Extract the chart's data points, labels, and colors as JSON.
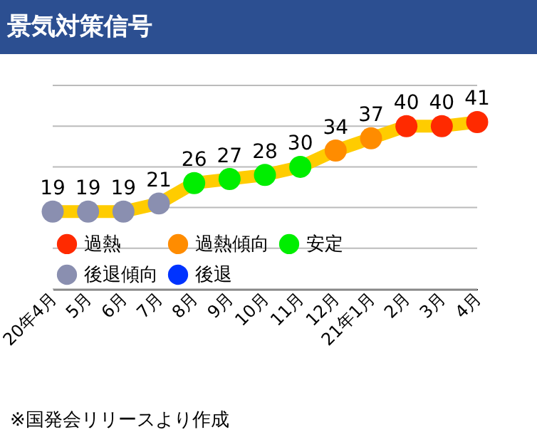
{
  "chart_data": {
    "type": "line",
    "title": "景気対策信号",
    "categories": [
      "20年4月",
      "5月",
      "6月",
      "7月",
      "8月",
      "9月",
      "10月",
      "11月",
      "12月",
      "21年1月",
      "2月",
      "3月",
      "4月"
    ],
    "series": [
      {
        "marker": "none",
        "color": "#ffcc00",
        "values": [
          19,
          19,
          19,
          21,
          26,
          27,
          28,
          30,
          34,
          37,
          40,
          40,
          41
        ],
        "value_labels": [
          "19",
          "19",
          "19",
          "21",
          "26",
          "27",
          "28",
          "30",
          "34",
          "37",
          "40",
          "40",
          "41"
        ]
      },
      {
        "type": "scatter",
        "name": "過熱",
        "color": "#ff2a00",
        "values": [
          null,
          null,
          null,
          null,
          null,
          null,
          null,
          null,
          null,
          null,
          40,
          40,
          41
        ]
      },
      {
        "type": "scatter",
        "name": "過熱傾向",
        "color": "#ff8c00",
        "values": [
          null,
          null,
          null,
          null,
          null,
          null,
          null,
          null,
          34,
          37,
          null,
          null,
          null
        ]
      },
      {
        "type": "scatter",
        "name": "安定",
        "color": "#00ee00",
        "values": [
          null,
          null,
          null,
          null,
          26,
          27,
          28,
          30,
          null,
          null,
          null,
          null,
          null
        ]
      },
      {
        "type": "scatter",
        "name": "後退傾向",
        "color": "#8a8fb0",
        "values": [
          19,
          19,
          19,
          21,
          null,
          null,
          null,
          null,
          null,
          null,
          null,
          null,
          null
        ]
      },
      {
        "type": "scatter",
        "name": "後退",
        "color": "#0033ff",
        "values": [
          null,
          null,
          null,
          null,
          null,
          null,
          null,
          null,
          null,
          null,
          null,
          null,
          null
        ]
      }
    ],
    "ylim": [
      0,
      50
    ],
    "yticks": [
      {
        "value": 0,
        "label": null
      },
      {
        "value": 10,
        "label": null
      },
      {
        "value": 20,
        "label": null
      },
      {
        "value": 30,
        "label": null
      },
      {
        "value": 40,
        "label": null
      },
      {
        "value": 50,
        "label": null
      }
    ],
    "grid": "y",
    "tick_labels": "x",
    "legend": "bottom left",
    "marker": "circle",
    "annotations": [
      "※国発会リリースより作成"
    ]
  }
}
